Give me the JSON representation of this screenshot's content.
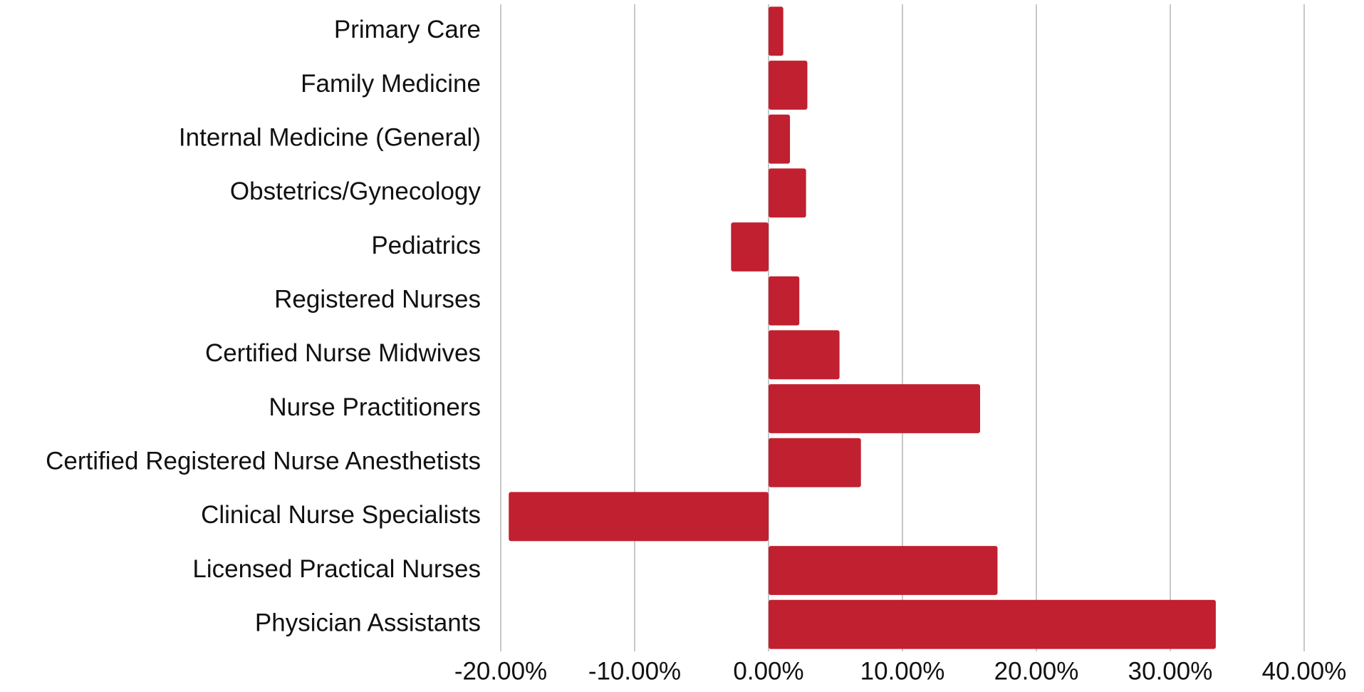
{
  "chart_data": {
    "type": "bar",
    "orientation": "horizontal",
    "categories": [
      "Primary Care",
      "Family Medicine",
      "Internal Medicine (General)",
      "Obstetrics/Gynecology",
      "Pediatrics",
      "Registered Nurses",
      "Certified Nurse Midwives",
      "Nurse Practitioners",
      "Certified Registered Nurse Anesthetists",
      "Clinical Nurse Specialists",
      "Licensed Practical Nurses",
      "Physician Assistants"
    ],
    "values": [
      1.1,
      2.9,
      1.6,
      2.8,
      -2.8,
      2.3,
      5.3,
      15.8,
      6.9,
      -19.4,
      17.1,
      33.4
    ],
    "color": "#c0202f",
    "xlim": [
      -20,
      40
    ],
    "xticks": [
      {
        "value": -20,
        "label": "-20.00%"
      },
      {
        "value": -10,
        "label": "-10.00%"
      },
      {
        "value": 0,
        "label": "0.00%"
      },
      {
        "value": 10,
        "label": "10.00%"
      },
      {
        "value": 20,
        "label": "20.00%"
      },
      {
        "value": 30,
        "label": "30.00%"
      },
      {
        "value": 40,
        "label": "40.00%"
      }
    ],
    "grid": true
  }
}
